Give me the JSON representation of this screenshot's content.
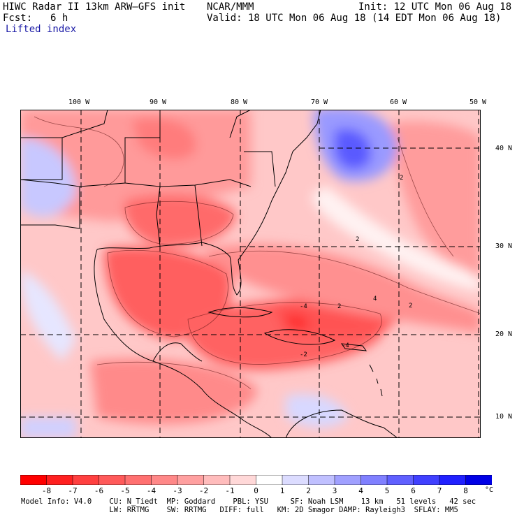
{
  "header": {
    "model_title": "HIWC Radar II 13km ARW–GFS init",
    "org": "NCAR/MMM",
    "init": "Init: 12 UTC Mon 06 Aug 18",
    "forecast_label": "Fcst:",
    "forecast_hours": "6 h",
    "valid": "Valid: 18 UTC Mon 06 Aug 18 (14 EDT Mon 06 Aug 18)",
    "field_name": "Lifted index"
  },
  "map": {
    "longitude_labels": [
      "100 W",
      "90 W",
      "80 W",
      "70 W",
      "60 W",
      "50 W"
    ],
    "latitude_labels": [
      "40 N",
      "30 N",
      "20 N",
      "10 N"
    ],
    "grid_style": "dashed",
    "contour_labels": [
      "2",
      "2",
      "2",
      "4",
      "-2",
      "-4",
      "-4",
      "2"
    ]
  },
  "colorbar": {
    "labels": [
      "-8",
      "-7",
      "-6",
      "-5",
      "-4",
      "-3",
      "-2",
      "-1",
      "0",
      "1",
      "2",
      "3",
      "4",
      "5",
      "6",
      "7",
      "8"
    ],
    "unit": "°C",
    "colors": [
      "#ff0000",
      "#ff2020",
      "#ff4040",
      "#ff5a5a",
      "#ff7070",
      "#ff8888",
      "#ffa0a0",
      "#ffbcbc",
      "#ffd8d8",
      "#ffffff",
      "#dcdcff",
      "#c0c0ff",
      "#a0a0ff",
      "#8080ff",
      "#6060ff",
      "#4040ff",
      "#2020ff",
      "#0000e6"
    ]
  },
  "footer": {
    "line1": "Model Info: V4.0    CU: N_Tiedt  MP: Goddard    PBL: YSU     SF: Noah LSM    13 km   51 levels   42 sec",
    "line2": "                    LW: RRTMG    SW: RRTMG   DIFF: full   KM: 2D Smagor DAMP: Rayleigh3  SFLAY: MM5"
  }
}
